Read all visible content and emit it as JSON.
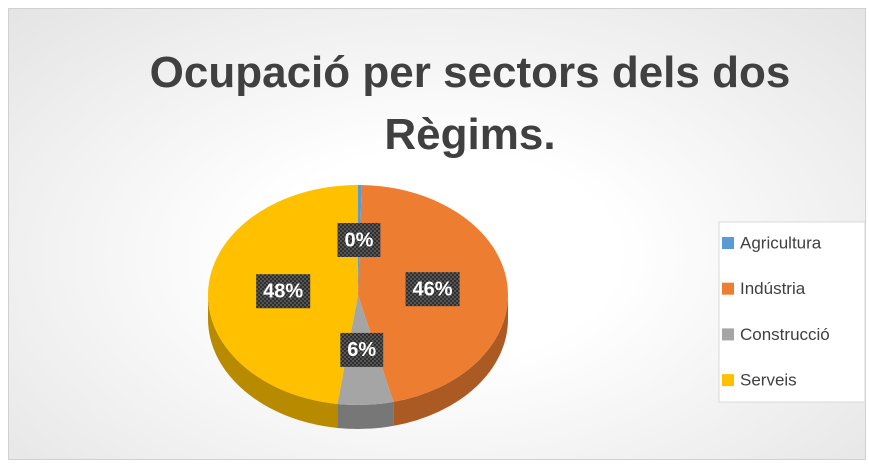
{
  "chart_data": {
    "type": "pie3d",
    "title": "Ocupació per sectors dels dos Règims.",
    "categories": [
      "Agricultura",
      "Indústria",
      "Construcció",
      "Serveis"
    ],
    "values": [
      0.4,
      46,
      6,
      48
    ],
    "value_labels": [
      "0%",
      "46%",
      "6%",
      "48%"
    ],
    "colors": [
      "#5b9bd5",
      "#ed7d31",
      "#a5a5a5",
      "#ffc000"
    ],
    "legend": "right"
  }
}
